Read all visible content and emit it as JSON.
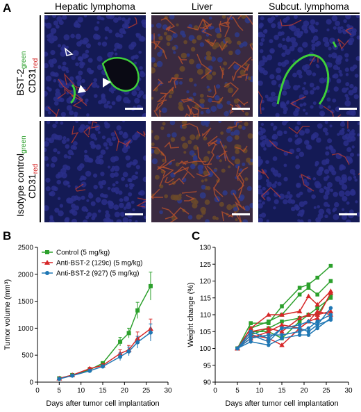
{
  "panel_letters": {
    "a": "A",
    "b": "B",
    "c": "C"
  },
  "panel_a": {
    "column_headers": [
      "Hepatic lymphoma",
      "Liver",
      "Subcut. lymphoma"
    ],
    "row1_label": {
      "bst": "BST-2",
      "bst_sub": "green",
      "cd": "CD31",
      "cd_sub": "red"
    },
    "row2_label": {
      "iso": "Isotype control",
      "iso_sub": "green",
      "cd": "CD31",
      "cd_sub": "red"
    },
    "colors": {
      "nuclei": "#2a2f8a",
      "vessel_green": "#3ecf3a",
      "vessel_red": "#d0402a",
      "liver_bg": "#7a5a2a"
    }
  },
  "chart_data": [
    {
      "type": "line",
      "xlabel": "Days after tumor cell implantation",
      "ylabel": "Tumor volume (mm³)",
      "xlim": [
        0,
        30
      ],
      "ylim": [
        0,
        2500
      ],
      "xticks": [
        0,
        5,
        10,
        15,
        20,
        25,
        30
      ],
      "yticks": [
        0,
        500,
        1000,
        1500,
        2000,
        2500
      ],
      "legend_position": "top-left",
      "series": [
        {
          "name": "Control (5 mg/kg)",
          "color": "#2ca02c",
          "marker": "square",
          "x": [
            5,
            8,
            12,
            15,
            19,
            21,
            23,
            26
          ],
          "y": [
            70,
            130,
            230,
            350,
            750,
            910,
            1330,
            1780
          ],
          "err": [
            10,
            15,
            20,
            30,
            80,
            90,
            150,
            260
          ]
        },
        {
          "name": "Anti-BST-2 (129c) (5 mg/kg)",
          "color": "#d62728",
          "marker": "triangle",
          "x": [
            5,
            8,
            12,
            15,
            19,
            21,
            23,
            26
          ],
          "y": [
            70,
            130,
            250,
            310,
            530,
            600,
            810,
            990
          ],
          "err": [
            10,
            15,
            25,
            30,
            70,
            80,
            120,
            180
          ]
        },
        {
          "name": "Anti-BST-2 (927) (5 mg/kg)",
          "color": "#1f77b4",
          "marker": "circle",
          "x": [
            5,
            8,
            12,
            15,
            19,
            21,
            23,
            26
          ],
          "y": [
            60,
            120,
            210,
            290,
            470,
            570,
            740,
            920
          ],
          "err": [
            10,
            15,
            20,
            30,
            70,
            80,
            110,
            160
          ]
        }
      ]
    },
    {
      "type": "line",
      "xlabel": "Days after tumor cell implantation",
      "ylabel": "Weight change (%)",
      "xlim": [
        0,
        30
      ],
      "ylim": [
        90,
        130
      ],
      "xticks": [
        0,
        5,
        10,
        15,
        20,
        25,
        30
      ],
      "yticks": [
        90,
        95,
        100,
        105,
        110,
        115,
        120,
        125,
        130
      ],
      "series": [
        {
          "color": "#2ca02c",
          "marker": "square",
          "x": [
            5,
            8,
            12,
            15,
            19,
            21,
            23,
            26
          ],
          "y": [
            100,
            107.5,
            107.5,
            112.5,
            118,
            119,
            121,
            124.5
          ]
        },
        {
          "color": "#2ca02c",
          "marker": "square",
          "x": [
            5,
            8,
            12,
            15,
            19,
            21,
            23,
            26
          ],
          "y": [
            100,
            106,
            108,
            110,
            116,
            118,
            116,
            120
          ]
        },
        {
          "color": "#2ca02c",
          "marker": "square",
          "x": [
            5,
            8,
            12,
            15,
            19,
            21,
            23,
            26
          ],
          "y": [
            100,
            105,
            105,
            103,
            108,
            110,
            110,
            116
          ]
        },
        {
          "color": "#2ca02c",
          "marker": "square",
          "x": [
            5,
            8,
            12,
            15,
            19,
            21,
            23,
            26
          ],
          "y": [
            100,
            104,
            106,
            108,
            109,
            110,
            112,
            115
          ]
        },
        {
          "color": "#d62728",
          "marker": "triangle",
          "x": [
            5,
            8,
            12,
            15,
            19,
            21,
            23,
            26
          ],
          "y": [
            100,
            106,
            110,
            110,
            111,
            115.5,
            113,
            117
          ]
        },
        {
          "color": "#d62728",
          "marker": "triangle",
          "x": [
            5,
            8,
            12,
            15,
            19,
            21,
            23,
            26
          ],
          "y": [
            100,
            104,
            103,
            101,
            106,
            108,
            109,
            116.5
          ]
        },
        {
          "color": "#d62728",
          "marker": "triangle",
          "x": [
            5,
            8,
            12,
            15,
            19,
            21,
            23,
            26
          ],
          "y": [
            100,
            103,
            105,
            107,
            106,
            108,
            111,
            110
          ]
        },
        {
          "color": "#d62728",
          "marker": "triangle",
          "x": [
            5,
            8,
            12,
            15,
            19,
            21,
            23,
            26
          ],
          "y": [
            100,
            105,
            106,
            105,
            109,
            110,
            110,
            111
          ]
        },
        {
          "color": "#1f77b4",
          "marker": "circle",
          "x": [
            5,
            8,
            12,
            15,
            19,
            21,
            23,
            26
          ],
          "y": [
            100,
            104,
            102,
            106,
            107,
            108,
            107,
            112
          ]
        },
        {
          "color": "#1f77b4",
          "marker": "circle",
          "x": [
            5,
            8,
            12,
            15,
            19,
            21,
            23,
            26
          ],
          "y": [
            100,
            103,
            104,
            104,
            105,
            106,
            108,
            110
          ]
        },
        {
          "color": "#1f77b4",
          "marker": "circle",
          "x": [
            5,
            8,
            12,
            15,
            19,
            21,
            23,
            26
          ],
          "y": [
            100,
            102,
            101,
            103,
            104,
            104,
            106,
            109
          ]
        },
        {
          "color": "#1f77b4",
          "marker": "circle",
          "x": [
            5,
            8,
            12,
            15,
            19,
            21,
            23,
            26
          ],
          "y": [
            100,
            105,
            103,
            106,
            106,
            105,
            107,
            108.5
          ]
        }
      ]
    }
  ]
}
